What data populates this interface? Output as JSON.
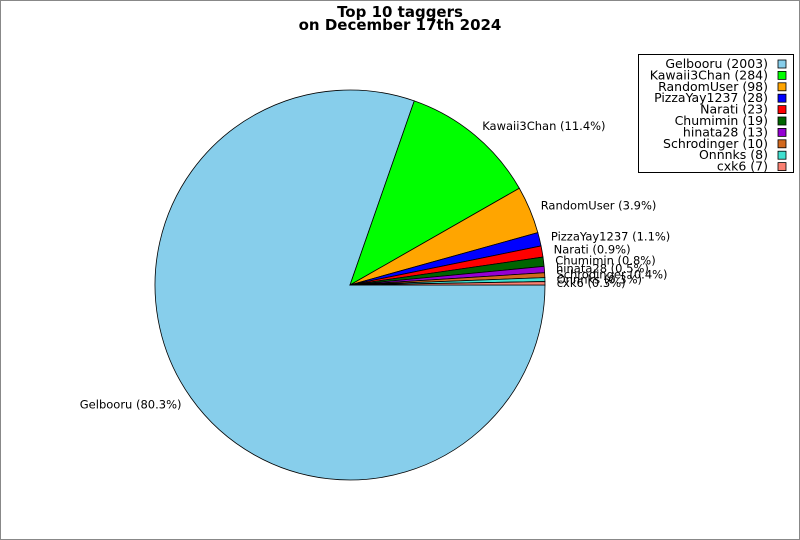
{
  "chart_data": {
    "type": "pie",
    "title_lines": [
      "Top 10 taggers",
      "on December 17th 2024"
    ],
    "slices": [
      {
        "name": "Gelbooru",
        "value": 2003,
        "label": "Gelbooru (80.3%)",
        "legend": "Gelbooru (2003)",
        "color": "#87ceeb"
      },
      {
        "name": "Kawaii3Chan",
        "value": 284,
        "label": "Kawaii3Chan (11.4%)",
        "legend": "Kawaii3Chan (284)",
        "color": "#00ff00"
      },
      {
        "name": "RandomUser",
        "value": 98,
        "label": "RandomUser (3.9%)",
        "legend": "RandomUser (98)",
        "color": "#ffa500"
      },
      {
        "name": "PizzaYay1237",
        "value": 28,
        "label": "PizzaYay1237 (1.1%)",
        "legend": "PizzaYay1237 (28)",
        "color": "#0000ff"
      },
      {
        "name": "Narati",
        "value": 23,
        "label": "Narati (0.9%)",
        "legend": "Narati (23)",
        "color": "#ff0000"
      },
      {
        "name": "Chumimin",
        "value": 19,
        "label": "Chumimin (0.8%)",
        "legend": "Chumimin (19)",
        "color": "#006400"
      },
      {
        "name": "hinata28",
        "value": 13,
        "label": "hinata28 (0.5%)",
        "legend": "hinata28 (13)",
        "color": "#9400d3"
      },
      {
        "name": "Schrodinger",
        "value": 10,
        "label": "Schrodinger (0.4%)",
        "legend": "Schrodinger (10)",
        "color": "#d2691e"
      },
      {
        "name": "Onnnks",
        "value": 8,
        "label": "Onnnks (0.3%)",
        "legend": "Onnnks (8)",
        "color": "#40e0d0"
      },
      {
        "name": "cxk6",
        "value": 7,
        "label": "cxk6 (0.3%)",
        "legend": "cxk6 (7)",
        "color": "#fa8072"
      }
    ],
    "legend_position": "top-right",
    "start_angle_deg": 0,
    "direction": "clockwise"
  }
}
